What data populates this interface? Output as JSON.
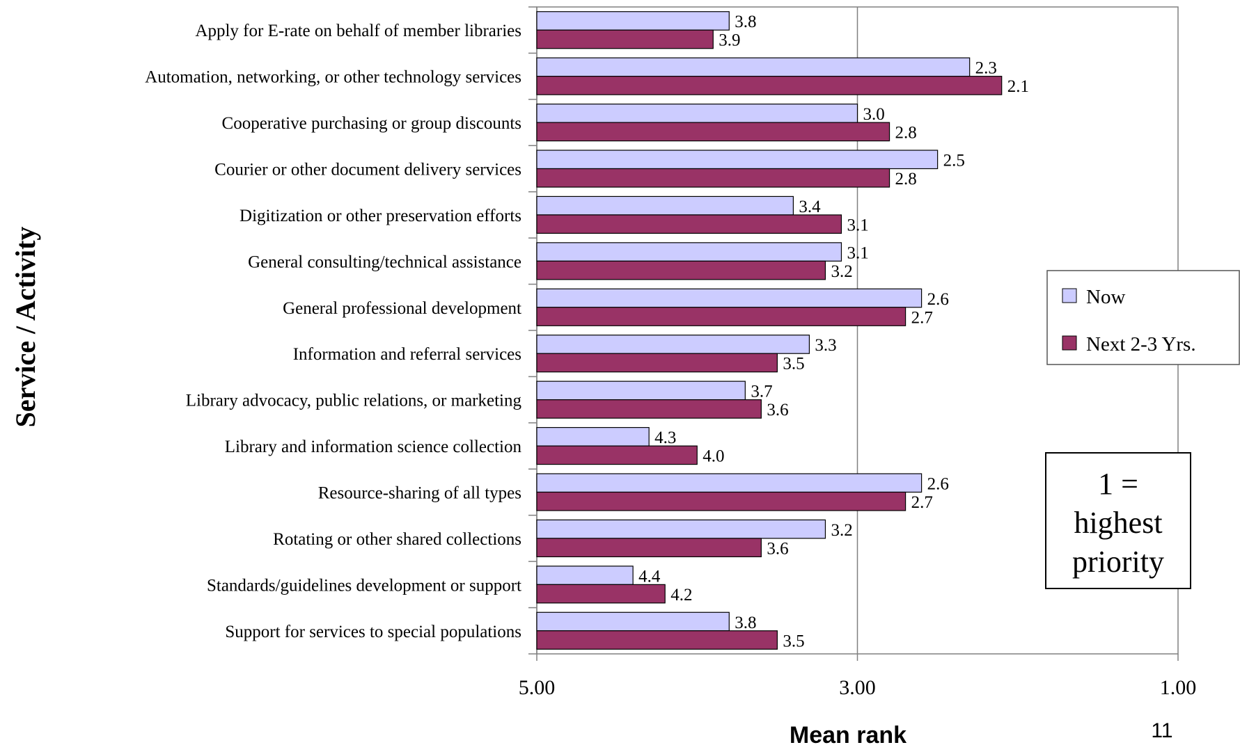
{
  "chart_data": {
    "type": "bar",
    "orientation": "horizontal",
    "categories": [
      "Apply for E-rate on behalf of member libraries",
      "Automation, networking, or other technology services",
      "Cooperative purchasing or group discounts",
      "Courier or other document delivery services",
      "Digitization or other preservation efforts",
      "General consulting/technical assistance",
      "General professional development",
      "Information and referral services",
      "Library advocacy, public relations, or marketing",
      "Library and information science collection",
      "Resource-sharing of all types",
      "Rotating or other shared collections",
      "Standards/guidelines development or support",
      "Support for services to special populations"
    ],
    "series": [
      {
        "name": "Now",
        "color": "#CCCCFF",
        "values": [
          3.8,
          2.3,
          3.0,
          2.5,
          3.4,
          3.1,
          2.6,
          3.3,
          3.7,
          4.3,
          2.6,
          3.2,
          4.4,
          3.8
        ],
        "labels": [
          "3.8",
          "2.3",
          "3.0",
          "2.5",
          "3.4",
          "3.1",
          "2.6",
          "3.3",
          "3.7",
          "4.3",
          "2.6",
          "3.2",
          "4.4",
          "3.8"
        ]
      },
      {
        "name": "Next 2-3 Yrs.",
        "color": "#993366",
        "values": [
          3.9,
          2.1,
          2.8,
          2.8,
          3.1,
          3.2,
          2.7,
          3.5,
          3.6,
          4.0,
          2.7,
          3.6,
          4.2,
          3.5
        ],
        "labels": [
          "3.9",
          "2.1",
          "2.8",
          "2.8",
          "3.1",
          "3.2",
          "2.7",
          "3.5",
          "3.6",
          "4.0",
          "2.7",
          "3.6",
          "4.2",
          "3.5"
        ]
      }
    ],
    "xlim": [
      5.0,
      1.0
    ],
    "x_reversed": true,
    "x_ticks": [
      5.0,
      3.0,
      1.0
    ],
    "x_tick_labels": [
      "5.00",
      "3.00",
      "1.00"
    ],
    "xlabel": "Mean rank",
    "ylabel": "Service / Activity",
    "grid": "vertical major lines",
    "legend_position": "right"
  },
  "annotation": {
    "lines": [
      "1 =",
      "highest",
      "priority"
    ]
  },
  "page_number": "11"
}
